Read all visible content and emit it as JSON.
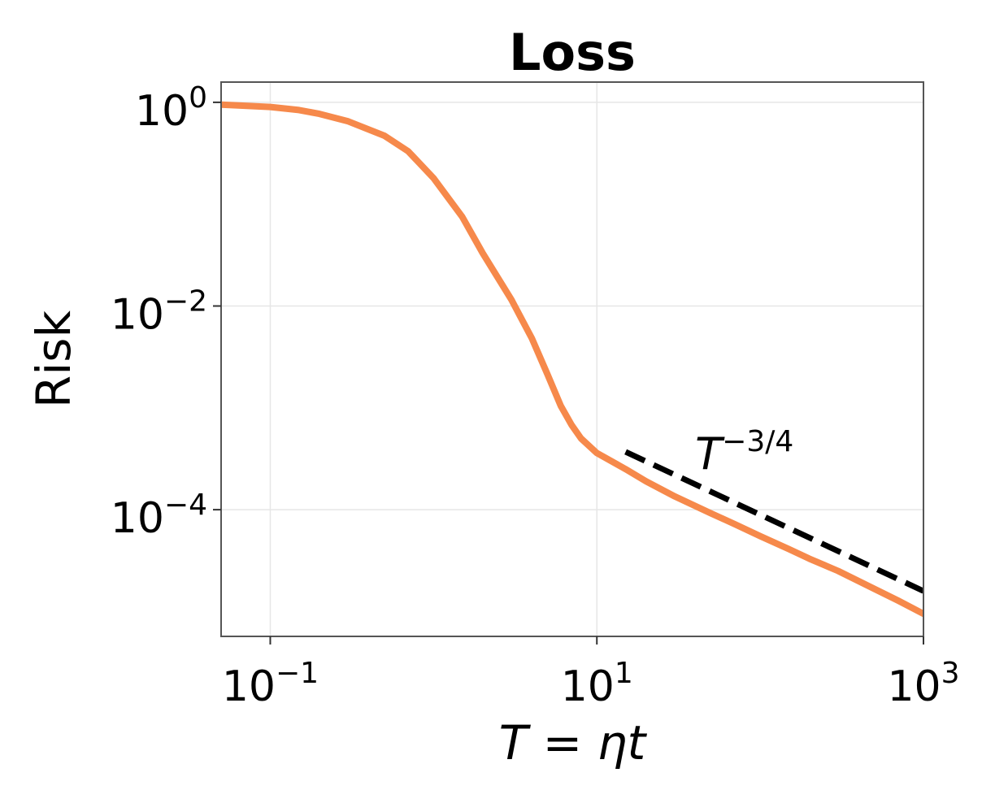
{
  "chart_data": {
    "type": "line",
    "title": "Loss",
    "xlabel": "T = ηt",
    "ylabel": "Risk",
    "xscale": "log",
    "yscale": "log",
    "xlim": [
      0.05,
      1000
    ],
    "ylim": [
      5.7e-06,
      1.58
    ],
    "grid": true,
    "x_ticks": [
      {
        "base": "10",
        "exp": "−1",
        "value": 0.1
      },
      {
        "base": "10",
        "exp": "1",
        "value": 10
      },
      {
        "base": "10",
        "exp": "3",
        "value": 1000
      }
    ],
    "y_ticks": [
      {
        "base": "10",
        "exp": "0",
        "value": 1
      },
      {
        "base": "10",
        "exp": "−2",
        "value": 0.01
      },
      {
        "base": "10",
        "exp": "−4",
        "value": 0.0001
      }
    ],
    "series": [
      {
        "color": "#f6894b",
        "style": "solid",
        "x": [
          0.05,
          0.1,
          0.15,
          0.2,
          0.3,
          0.5,
          0.7,
          1.0,
          1.5,
          2.0,
          3.0,
          4.0,
          5.0,
          6.0,
          7.0,
          8.0,
          10.0,
          15.0,
          20.0,
          30.0,
          50.0,
          70.0,
          100.0,
          150.0,
          200.0,
          300.0,
          500.0,
          700.0,
          1000.0
        ],
        "y": [
          0.95,
          0.9,
          0.84,
          0.77,
          0.65,
          0.47,
          0.33,
          0.18,
          0.075,
          0.033,
          0.0115,
          0.0048,
          0.0021,
          0.00105,
          0.00068,
          0.0005,
          0.00036,
          0.00025,
          0.00019,
          0.000135,
          9.2e-05,
          7.2e-05,
          5.5e-05,
          4.1e-05,
          3.3e-05,
          2.5e-05,
          1.67e-05,
          1.28e-05,
          9.5e-06
        ]
      },
      {
        "color": "#000000",
        "style": "dashed",
        "x": [
          15.0,
          1000.0
        ],
        "y": [
          0.00037,
          1.59e-05
        ]
      }
    ],
    "annotations": [
      {
        "base": "T",
        "exp": "−3/4",
        "x": 40.0,
        "y": 0.00025
      }
    ]
  }
}
